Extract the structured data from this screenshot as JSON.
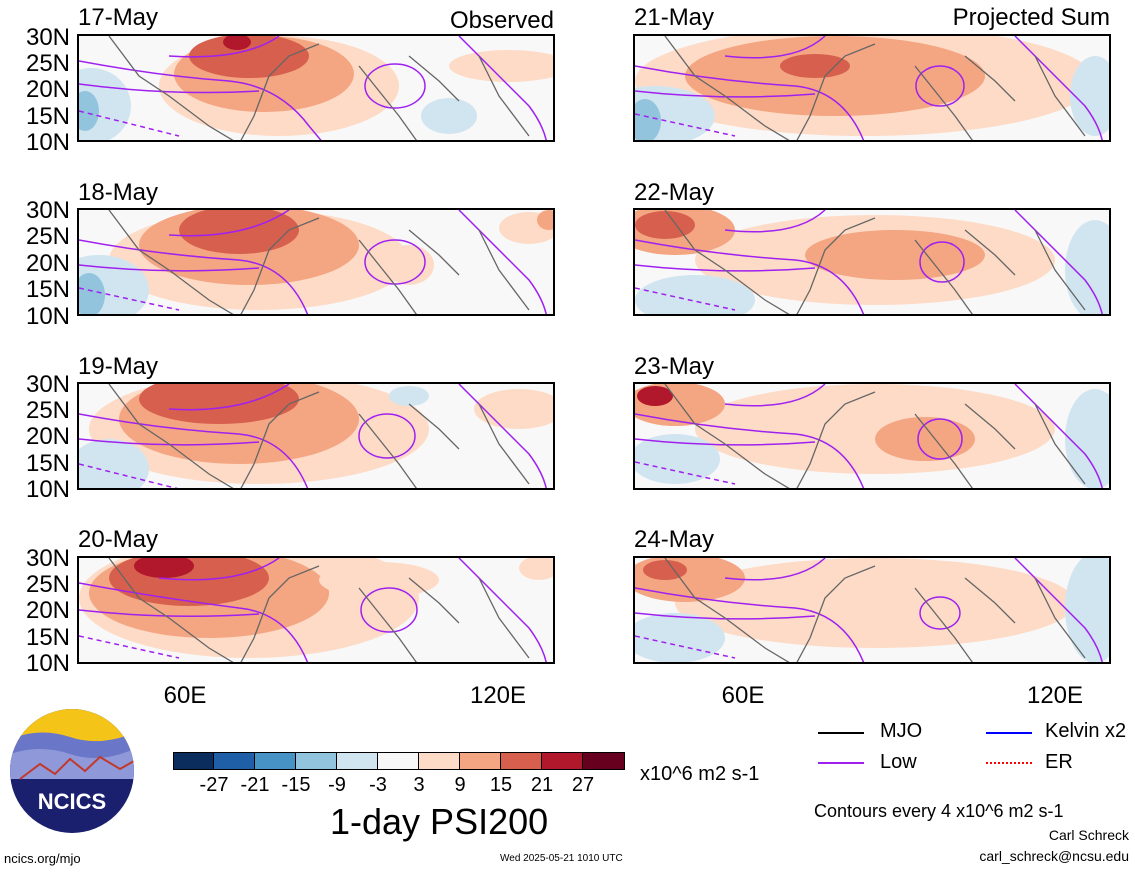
{
  "observed_label": "Observed",
  "projected_label": "Projected Sum",
  "dates_observed": [
    "17-May",
    "18-May",
    "19-May",
    "20-May"
  ],
  "dates_projected": [
    "21-May",
    "22-May",
    "23-May",
    "24-May"
  ],
  "lat_labels": [
    "30N",
    "25N",
    "20N",
    "15N",
    "10N"
  ],
  "lon_labels": [
    "60E",
    "120E"
  ],
  "colorbar": {
    "ticks": [
      "-27",
      "-21",
      "-15",
      "-9",
      "-3",
      "3",
      "9",
      "15",
      "21",
      "27"
    ],
    "unit": "x10^6 m2 s-1",
    "colors": [
      "#0a2d5e",
      "#1f5fa8",
      "#4893c6",
      "#92c4de",
      "#d1e5f0",
      "#f7f7f7",
      "#fddbc7",
      "#f4a582",
      "#d6604d",
      "#b2182b",
      "#67001f"
    ]
  },
  "title": "1-day PSI200",
  "legend": {
    "mjo": "MJO",
    "kelvin": "Kelvin x2",
    "low": "Low",
    "er": "ER",
    "mjo_color": "#000000",
    "kelvin_color": "#0000ff",
    "low_color": "#a020f0",
    "er_color": "#ff0000"
  },
  "contours_note": "Contours every 4 x10^6 m2 s-1",
  "author": "Carl Schreck",
  "email": "carl_schreck@ncsu.edu",
  "url": "ncics.org/mjo",
  "timestamp": "Wed 2025-05-21 1010 UTC",
  "logo_text": "NCICS"
}
